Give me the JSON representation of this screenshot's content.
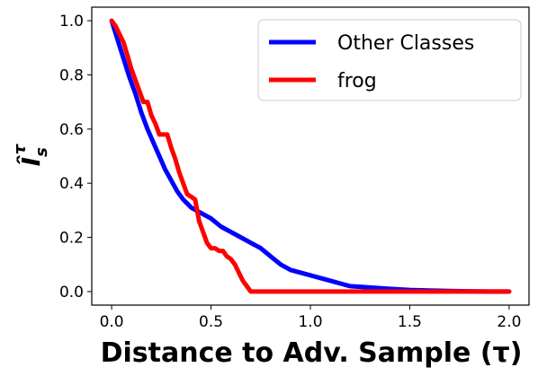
{
  "chart_data": {
    "type": "line",
    "xlabel": "Distance to Adv. Sample (τ)",
    "ylabel": "Î",
    "ylabel_sub": "s",
    "ylabel_sup": "τ",
    "xlim": [
      -0.1,
      2.1
    ],
    "ylim": [
      -0.05,
      1.05
    ],
    "xticks": [
      "0.0",
      "0.5",
      "1.0",
      "1.5",
      "2.0"
    ],
    "yticks": [
      "0.0",
      "0.2",
      "0.4",
      "0.6",
      "0.8",
      "1.0"
    ],
    "grid": false,
    "legend": "top-right",
    "series": [
      {
        "name": "Other Classes",
        "color": "#0000ff",
        "x": [
          0.0,
          0.03,
          0.06,
          0.09,
          0.12,
          0.15,
          0.18,
          0.21,
          0.24,
          0.27,
          0.3,
          0.33,
          0.36,
          0.4,
          0.45,
          0.5,
          0.55,
          0.6,
          0.65,
          0.7,
          0.75,
          0.8,
          0.85,
          0.9,
          0.95,
          1.0,
          1.05,
          1.1,
          1.15,
          1.2,
          1.3,
          1.4,
          1.5,
          1.6,
          1.7,
          1.8,
          1.9,
          2.0
        ],
        "y": [
          1.0,
          0.93,
          0.86,
          0.79,
          0.73,
          0.66,
          0.6,
          0.55,
          0.5,
          0.45,
          0.41,
          0.37,
          0.34,
          0.31,
          0.29,
          0.27,
          0.24,
          0.22,
          0.2,
          0.18,
          0.16,
          0.13,
          0.1,
          0.08,
          0.07,
          0.06,
          0.05,
          0.04,
          0.03,
          0.02,
          0.015,
          0.01,
          0.006,
          0.004,
          0.002,
          0.001,
          0.0,
          0.0
        ]
      },
      {
        "name": "frog",
        "color": "#ff0000",
        "x": [
          0.0,
          0.02,
          0.04,
          0.06,
          0.08,
          0.1,
          0.12,
          0.14,
          0.16,
          0.18,
          0.2,
          0.22,
          0.24,
          0.26,
          0.28,
          0.3,
          0.32,
          0.34,
          0.36,
          0.38,
          0.4,
          0.42,
          0.44,
          0.46,
          0.48,
          0.5,
          0.52,
          0.54,
          0.56,
          0.58,
          0.6,
          0.62,
          0.64,
          0.66,
          0.68,
          0.7,
          0.8,
          1.0,
          1.2,
          1.4,
          1.6,
          1.8,
          2.0
        ],
        "y": [
          1.0,
          0.98,
          0.95,
          0.92,
          0.87,
          0.82,
          0.78,
          0.74,
          0.7,
          0.7,
          0.65,
          0.62,
          0.58,
          0.58,
          0.58,
          0.53,
          0.49,
          0.44,
          0.4,
          0.36,
          0.35,
          0.34,
          0.26,
          0.22,
          0.18,
          0.16,
          0.16,
          0.15,
          0.15,
          0.13,
          0.12,
          0.1,
          0.07,
          0.04,
          0.02,
          0.0,
          0.0,
          0.0,
          0.0,
          0.0,
          0.0,
          0.0,
          0.0
        ]
      }
    ]
  }
}
